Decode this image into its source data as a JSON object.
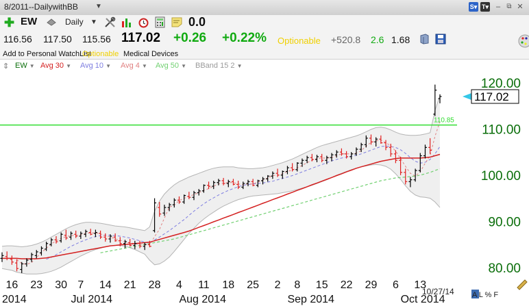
{
  "header": {
    "title": "8/2011--DailywithBB",
    "period": "Daily",
    "symbol": "EW",
    "change_value": "0.0"
  },
  "quote": {
    "open": "116.56",
    "high": "117.50",
    "low": "115.56",
    "last": "117.02",
    "change": "+0.26",
    "change_pct": "+0.22%",
    "optionable": "Optionable",
    "value1": "+520.8",
    "value2": "2.6",
    "value3": "1.68",
    "watchlist": "Add to Personal WatchList",
    "optionable_small": "Optionable",
    "industry": "Medical Devices"
  },
  "legend": [
    {
      "label": "EW",
      "color": "#0a6e0a"
    },
    {
      "label": "Avg 30",
      "color": "#d42020"
    },
    {
      "label": "Avg 10",
      "color": "#7d7de0"
    },
    {
      "label": "Avg 4",
      "color": "#e08080"
    },
    {
      "label": "Avg 50",
      "color": "#70d070"
    },
    {
      "label": "BBand 15 2",
      "color": "#9a9a9a"
    }
  ],
  "status": {
    "date": "10/27/14",
    "mode_labels": "A L % F"
  },
  "colors": {
    "axis_text": "#0a6e0a",
    "up_bar": "#000000",
    "down_bar": "#e02020",
    "hline": "#33dd33",
    "band_fill": "#efefef",
    "band_line": "#b4b4b4"
  },
  "chart_data": {
    "type": "ohlc",
    "title": "",
    "y_ticks": [
      80,
      90,
      100,
      110,
      120
    ],
    "y_tick_labels": [
      "80.00",
      "90.00",
      "100.00",
      "110.00",
      "120.00"
    ],
    "ylim": [
      78.5,
      122.5
    ],
    "last_price_label": "117.02",
    "horizontal_line": {
      "value": 110.85,
      "label": "110.85"
    },
    "x_day_labels": [
      "16",
      "23",
      "30",
      "7",
      "14",
      "21",
      "28",
      "4",
      "11",
      "18",
      "25",
      "2",
      "8",
      "15",
      "22",
      "29",
      "6",
      "13"
    ],
    "x_day_label_index": [
      2,
      7,
      12,
      16,
      21,
      26,
      31,
      36,
      41,
      46,
      51,
      56,
      60,
      65,
      70,
      75,
      80,
      85
    ],
    "x_month_labels": [
      "2014",
      "Jul 2014",
      "Aug 2014",
      "Sep 2014",
      "Oct 2014"
    ],
    "x_month_label_index": [
      0,
      14,
      36,
      58,
      81
    ],
    "bars": [
      [
        82.0,
        83.3,
        81.2,
        82.6
      ],
      [
        82.4,
        83.5,
        81.6,
        82.0
      ],
      [
        81.8,
        82.6,
        80.6,
        81.2
      ],
      [
        81.0,
        81.8,
        79.2,
        79.8
      ],
      [
        79.6,
        81.2,
        78.8,
        80.8
      ],
      [
        80.8,
        82.0,
        80.2,
        81.6
      ],
      [
        81.8,
        83.2,
        81.2,
        82.8
      ],
      [
        82.6,
        83.8,
        82.0,
        83.4
      ],
      [
        83.2,
        84.6,
        82.6,
        84.2
      ],
      [
        84.0,
        85.6,
        83.6,
        85.2
      ],
      [
        85.0,
        86.4,
        84.6,
        86.0
      ],
      [
        86.0,
        86.8,
        85.2,
        85.6
      ],
      [
        85.8,
        87.6,
        85.4,
        87.2
      ],
      [
        87.0,
        88.2,
        86.0,
        86.4
      ],
      [
        86.6,
        87.8,
        86.0,
        87.4
      ],
      [
        87.2,
        88.0,
        86.4,
        86.8
      ],
      [
        86.8,
        87.8,
        86.2,
        87.4
      ],
      [
        87.2,
        88.2,
        86.6,
        87.8
      ],
      [
        87.6,
        88.4,
        87.0,
        87.2
      ],
      [
        87.4,
        88.2,
        86.6,
        87.6
      ],
      [
        87.4,
        88.0,
        86.2,
        86.6
      ],
      [
        86.6,
        87.4,
        85.6,
        86.2
      ],
      [
        86.2,
        87.2,
        85.4,
        86.8
      ],
      [
        86.6,
        87.4,
        85.6,
        85.8
      ],
      [
        85.8,
        86.6,
        84.6,
        85.2
      ],
      [
        85.2,
        86.0,
        84.2,
        85.6
      ],
      [
        85.4,
        86.2,
        84.6,
        84.8
      ],
      [
        84.8,
        85.8,
        84.0,
        85.2
      ],
      [
        85.2,
        85.8,
        84.2,
        84.6
      ],
      [
        84.6,
        85.4,
        83.8,
        85.0
      ],
      [
        85.0,
        85.8,
        84.4,
        84.6
      ],
      [
        88.0,
        95.0,
        87.6,
        94.0
      ],
      [
        93.0,
        94.2,
        91.0,
        91.6
      ],
      [
        91.8,
        93.6,
        91.2,
        93.0
      ],
      [
        93.0,
        94.0,
        92.2,
        93.6
      ],
      [
        93.6,
        95.0,
        93.0,
        94.6
      ],
      [
        94.6,
        95.4,
        93.8,
        94.2
      ],
      [
        94.2,
        95.8,
        93.8,
        95.6
      ],
      [
        95.4,
        96.4,
        94.8,
        95.2
      ],
      [
        95.2,
        96.6,
        94.6,
        96.2
      ],
      [
        96.2,
        97.0,
        95.6,
        96.6
      ],
      [
        96.6,
        98.0,
        96.2,
        97.8
      ],
      [
        97.8,
        98.6,
        97.0,
        97.6
      ],
      [
        97.6,
        98.8,
        97.0,
        98.4
      ],
      [
        98.4,
        99.2,
        97.8,
        98.8
      ],
      [
        98.8,
        99.4,
        97.8,
        98.2
      ],
      [
        98.2,
        99.0,
        97.4,
        98.6
      ],
      [
        98.6,
        99.2,
        97.8,
        98.0
      ],
      [
        98.0,
        98.8,
        97.0,
        97.4
      ],
      [
        97.4,
        98.6,
        97.0,
        98.2
      ],
      [
        98.2,
        99.0,
        97.6,
        98.6
      ],
      [
        98.6,
        99.2,
        97.6,
        97.8
      ],
      [
        97.8,
        99.0,
        97.4,
        98.8
      ],
      [
        98.8,
        99.6,
        98.0,
        99.2
      ],
      [
        99.2,
        100.0,
        98.6,
        99.8
      ],
      [
        99.8,
        100.8,
        99.2,
        100.4
      ],
      [
        100.4,
        101.4,
        99.6,
        100.0
      ],
      [
        100.0,
        101.0,
        99.2,
        100.8
      ],
      [
        100.8,
        102.0,
        100.2,
        101.6
      ],
      [
        101.6,
        102.6,
        100.8,
        101.2
      ],
      [
        101.2,
        102.8,
        100.8,
        102.6
      ],
      [
        102.6,
        103.6,
        101.8,
        103.2
      ],
      [
        103.2,
        104.2,
        102.6,
        103.8
      ],
      [
        103.8,
        104.6,
        103.0,
        103.4
      ],
      [
        103.4,
        104.4,
        102.8,
        104.0
      ],
      [
        104.0,
        104.6,
        102.8,
        103.2
      ],
      [
        103.2,
        104.2,
        102.4,
        103.8
      ],
      [
        103.8,
        104.8,
        103.0,
        104.4
      ],
      [
        104.4,
        105.4,
        103.8,
        105.0
      ],
      [
        105.0,
        105.8,
        104.2,
        104.6
      ],
      [
        104.6,
        105.2,
        103.6,
        104.0
      ],
      [
        104.0,
        105.0,
        103.4,
        104.6
      ],
      [
        104.6,
        106.0,
        104.2,
        105.6
      ],
      [
        105.6,
        107.0,
        105.0,
        106.6
      ],
      [
        106.6,
        108.6,
        106.0,
        108.0
      ],
      [
        108.0,
        108.8,
        106.6,
        107.2
      ],
      [
        107.2,
        108.2,
        106.2,
        107.8
      ],
      [
        107.8,
        108.6,
        106.8,
        107.0
      ],
      [
        107.0,
        107.6,
        105.4,
        106.0
      ],
      [
        106.0,
        106.8,
        104.0,
        104.6
      ],
      [
        104.6,
        105.4,
        102.6,
        103.2
      ],
      [
        103.2,
        104.0,
        100.0,
        100.6
      ],
      [
        100.6,
        101.4,
        98.0,
        98.6
      ],
      [
        98.6,
        99.6,
        97.4,
        99.0
      ],
      [
        99.0,
        101.4,
        98.6,
        101.0
      ],
      [
        101.0,
        104.8,
        100.6,
        104.2
      ],
      [
        104.2,
        106.6,
        103.6,
        106.0
      ],
      [
        106.0,
        108.0,
        104.6,
        105.4
      ],
      [
        113.2,
        119.6,
        112.8,
        118.4
      ],
      [
        116.56,
        117.5,
        115.56,
        117.02
      ]
    ],
    "series": [
      {
        "name": "Avg 30",
        "values": [
          82.0,
          82.0,
          82.0,
          82.0,
          81.9,
          81.9,
          81.9,
          81.9,
          82.0,
          82.1,
          82.3,
          82.5,
          82.7,
          82.9,
          83.1,
          83.3,
          83.5,
          83.7,
          83.9,
          84.1,
          84.3,
          84.5,
          84.7,
          84.8,
          84.9,
          85.0,
          85.1,
          85.2,
          85.3,
          85.4,
          85.5,
          85.8,
          86.1,
          86.4,
          86.7,
          87.0,
          87.3,
          87.6,
          87.9,
          88.3,
          88.7,
          89.1,
          89.5,
          89.9,
          90.3,
          90.7,
          91.1,
          91.5,
          91.9,
          92.3,
          92.7,
          93.1,
          93.5,
          93.9,
          94.3,
          94.7,
          95.1,
          95.5,
          95.9,
          96.3,
          96.7,
          97.1,
          97.5,
          97.9,
          98.3,
          98.7,
          99.1,
          99.5,
          99.9,
          100.3,
          100.7,
          101.1,
          101.5,
          101.8,
          102.1,
          102.4,
          102.7,
          103.0,
          103.2,
          103.4,
          103.6,
          103.7,
          103.7,
          103.7,
          103.7,
          103.7,
          103.8,
          103.9,
          104.2,
          104.5
        ]
      },
      {
        "name": "Avg 50",
        "values": [
          null,
          null,
          null,
          null,
          null,
          null,
          null,
          null,
          null,
          null,
          null,
          null,
          null,
          null,
          null,
          null,
          null,
          null,
          null,
          null,
          83.2,
          83.4,
          83.6,
          83.8,
          84.0,
          84.2,
          84.4,
          84.6,
          84.8,
          85.0,
          85.2,
          85.4,
          85.6,
          85.8,
          86.0,
          86.2,
          86.5,
          86.8,
          87.1,
          87.4,
          87.7,
          88.0,
          88.3,
          88.6,
          88.9,
          89.2,
          89.5,
          89.8,
          90.1,
          90.4,
          90.7,
          91.0,
          91.3,
          91.6,
          91.9,
          92.2,
          92.5,
          92.8,
          93.1,
          93.4,
          93.7,
          94.0,
          94.3,
          94.6,
          94.9,
          95.2,
          95.5,
          95.8,
          96.1,
          96.4,
          96.7,
          97.0,
          97.3,
          97.6,
          97.9,
          98.2,
          98.5,
          98.8,
          99.0,
          99.2,
          99.4,
          99.5,
          99.6,
          99.7,
          99.8,
          100.0,
          100.3,
          100.6,
          101.0,
          101.4
        ]
      },
      {
        "name": "Avg 10",
        "values": [
          null,
          null,
          null,
          null,
          null,
          null,
          null,
          null,
          null,
          81.8,
          82.2,
          82.8,
          83.4,
          84.0,
          84.6,
          85.1,
          85.6,
          86.0,
          86.4,
          86.7,
          86.9,
          87.0,
          87.0,
          86.9,
          86.8,
          86.6,
          86.4,
          86.1,
          85.8,
          85.5,
          85.3,
          86.0,
          86.6,
          87.3,
          88.0,
          88.8,
          89.6,
          90.4,
          91.3,
          92.2,
          93.0,
          93.8,
          94.5,
          95.1,
          95.7,
          96.2,
          96.7,
          97.1,
          97.5,
          97.8,
          98.0,
          98.1,
          98.2,
          98.3,
          98.5,
          98.7,
          99.0,
          99.3,
          99.6,
          99.9,
          100.3,
          100.7,
          101.1,
          101.5,
          101.9,
          102.3,
          102.7,
          103.1,
          103.4,
          103.7,
          103.9,
          104.1,
          104.3,
          104.6,
          105.0,
          105.4,
          105.8,
          106.2,
          106.3,
          106.2,
          106.0,
          105.5,
          104.7,
          103.8,
          103.0,
          102.6,
          102.8,
          103.4,
          104.6,
          106.2
        ]
      },
      {
        "name": "Avg 4",
        "values": [
          null,
          null,
          null,
          81.7,
          80.9,
          80.7,
          81.1,
          82.2,
          83.2,
          84.2,
          85.1,
          85.8,
          86.3,
          86.7,
          86.9,
          87.0,
          87.1,
          87.4,
          87.5,
          87.5,
          87.3,
          86.9,
          86.6,
          86.2,
          85.9,
          85.6,
          85.3,
          85.2,
          85.0,
          84.9,
          84.9,
          86.7,
          88.3,
          90.7,
          93.1,
          93.5,
          94.5,
          95.0,
          95.4,
          95.8,
          96.2,
          96.7,
          97.1,
          97.6,
          98.1,
          98.3,
          98.4,
          98.4,
          98.1,
          97.9,
          98.1,
          98.1,
          98.5,
          98.9,
          99.4,
          99.9,
          100.0,
          100.3,
          100.8,
          101.1,
          101.6,
          102.1,
          102.7,
          103.2,
          103.6,
          103.7,
          103.7,
          103.8,
          104.2,
          104.6,
          104.6,
          104.6,
          104.8,
          105.3,
          106.3,
          107.1,
          107.4,
          107.6,
          107.0,
          106.4,
          105.2,
          103.6,
          101.9,
          100.4,
          99.8,
          100.7,
          102.6,
          104.2,
          108.4,
          111.6
        ]
      },
      {
        "name": "BBand Upper",
        "values": [
          84.6,
          84.7,
          84.7,
          84.6,
          84.5,
          84.6,
          84.8,
          85.1,
          85.5,
          86.0,
          86.6,
          87.2,
          87.8,
          88.4,
          88.9,
          89.3,
          89.6,
          89.8,
          89.8,
          89.7,
          89.6,
          89.4,
          89.2,
          89.0,
          88.9,
          88.8,
          88.6,
          88.4,
          88.2,
          88.0,
          88.8,
          92.2,
          94.4,
          95.9,
          97.0,
          97.9,
          98.6,
          99.1,
          99.6,
          100.0,
          100.4,
          100.8,
          101.2,
          101.5,
          101.7,
          101.8,
          101.8,
          101.8,
          101.6,
          101.5,
          101.4,
          101.4,
          101.5,
          101.6,
          101.8,
          102.1,
          102.4,
          102.7,
          103.1,
          103.5,
          104.0,
          104.5,
          105.0,
          105.5,
          106.0,
          106.4,
          106.7,
          107.0,
          107.3,
          107.6,
          107.9,
          108.2,
          108.5,
          108.9,
          109.4,
          109.9,
          110.3,
          110.4,
          110.2,
          109.8,
          109.3,
          108.9,
          108.7,
          108.6,
          108.6,
          108.7,
          108.9,
          109.2,
          114.0,
          117.2
        ]
      },
      {
        "name": "BBand Lower",
        "values": [
          79.8,
          79.6,
          79.4,
          79.0,
          78.8,
          78.6,
          78.6,
          78.6,
          78.7,
          78.9,
          79.2,
          79.6,
          80.1,
          80.7,
          81.3,
          81.9,
          82.5,
          83.0,
          83.5,
          83.9,
          84.2,
          84.5,
          84.7,
          84.8,
          84.8,
          84.6,
          84.3,
          83.9,
          83.4,
          82.9,
          81.6,
          80.6,
          80.8,
          81.4,
          82.3,
          83.5,
          84.8,
          86.1,
          87.4,
          88.5,
          89.6,
          90.5,
          91.3,
          92.0,
          92.7,
          93.3,
          93.8,
          94.3,
          94.7,
          95.0,
          95.3,
          95.5,
          95.6,
          95.7,
          95.8,
          95.9,
          96.0,
          96.2,
          96.4,
          96.6,
          96.9,
          97.2,
          97.5,
          97.8,
          98.2,
          98.6,
          99.0,
          99.5,
          100.0,
          100.4,
          100.8,
          101.2,
          101.5,
          101.8,
          102.0,
          102.2,
          102.3,
          102.2,
          101.9,
          101.3,
          100.3,
          99.1,
          97.7,
          96.5,
          95.7,
          95.3,
          95.2,
          95.0,
          94.2,
          93.0
        ]
      }
    ]
  }
}
